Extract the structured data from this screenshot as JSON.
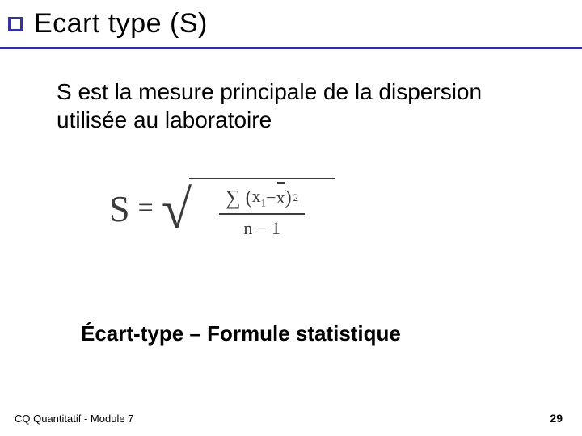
{
  "slide": {
    "title": "Ecart type (S)",
    "body": "S est la mesure principale de la dispersion utilisée au laboratoire",
    "subtitle": "Écart-type – Formule statistique",
    "footer_left": "CQ Quantitatif  - Module 7",
    "slide_number": "29"
  },
  "formula": {
    "lhs": "S",
    "equals": "=",
    "sigma": "∑",
    "lparen": "(",
    "x1": "x",
    "x1_sub": "1",
    "minus": "−",
    "xbar": "x",
    "rparen": ")",
    "square": "2",
    "denom_n": "n",
    "denom_minus": "−",
    "denom_one": "1"
  },
  "style": {
    "accent_color": "#333399",
    "text_color": "#000000",
    "formula_color": "#3a3a3a",
    "background": "#ffffff"
  }
}
